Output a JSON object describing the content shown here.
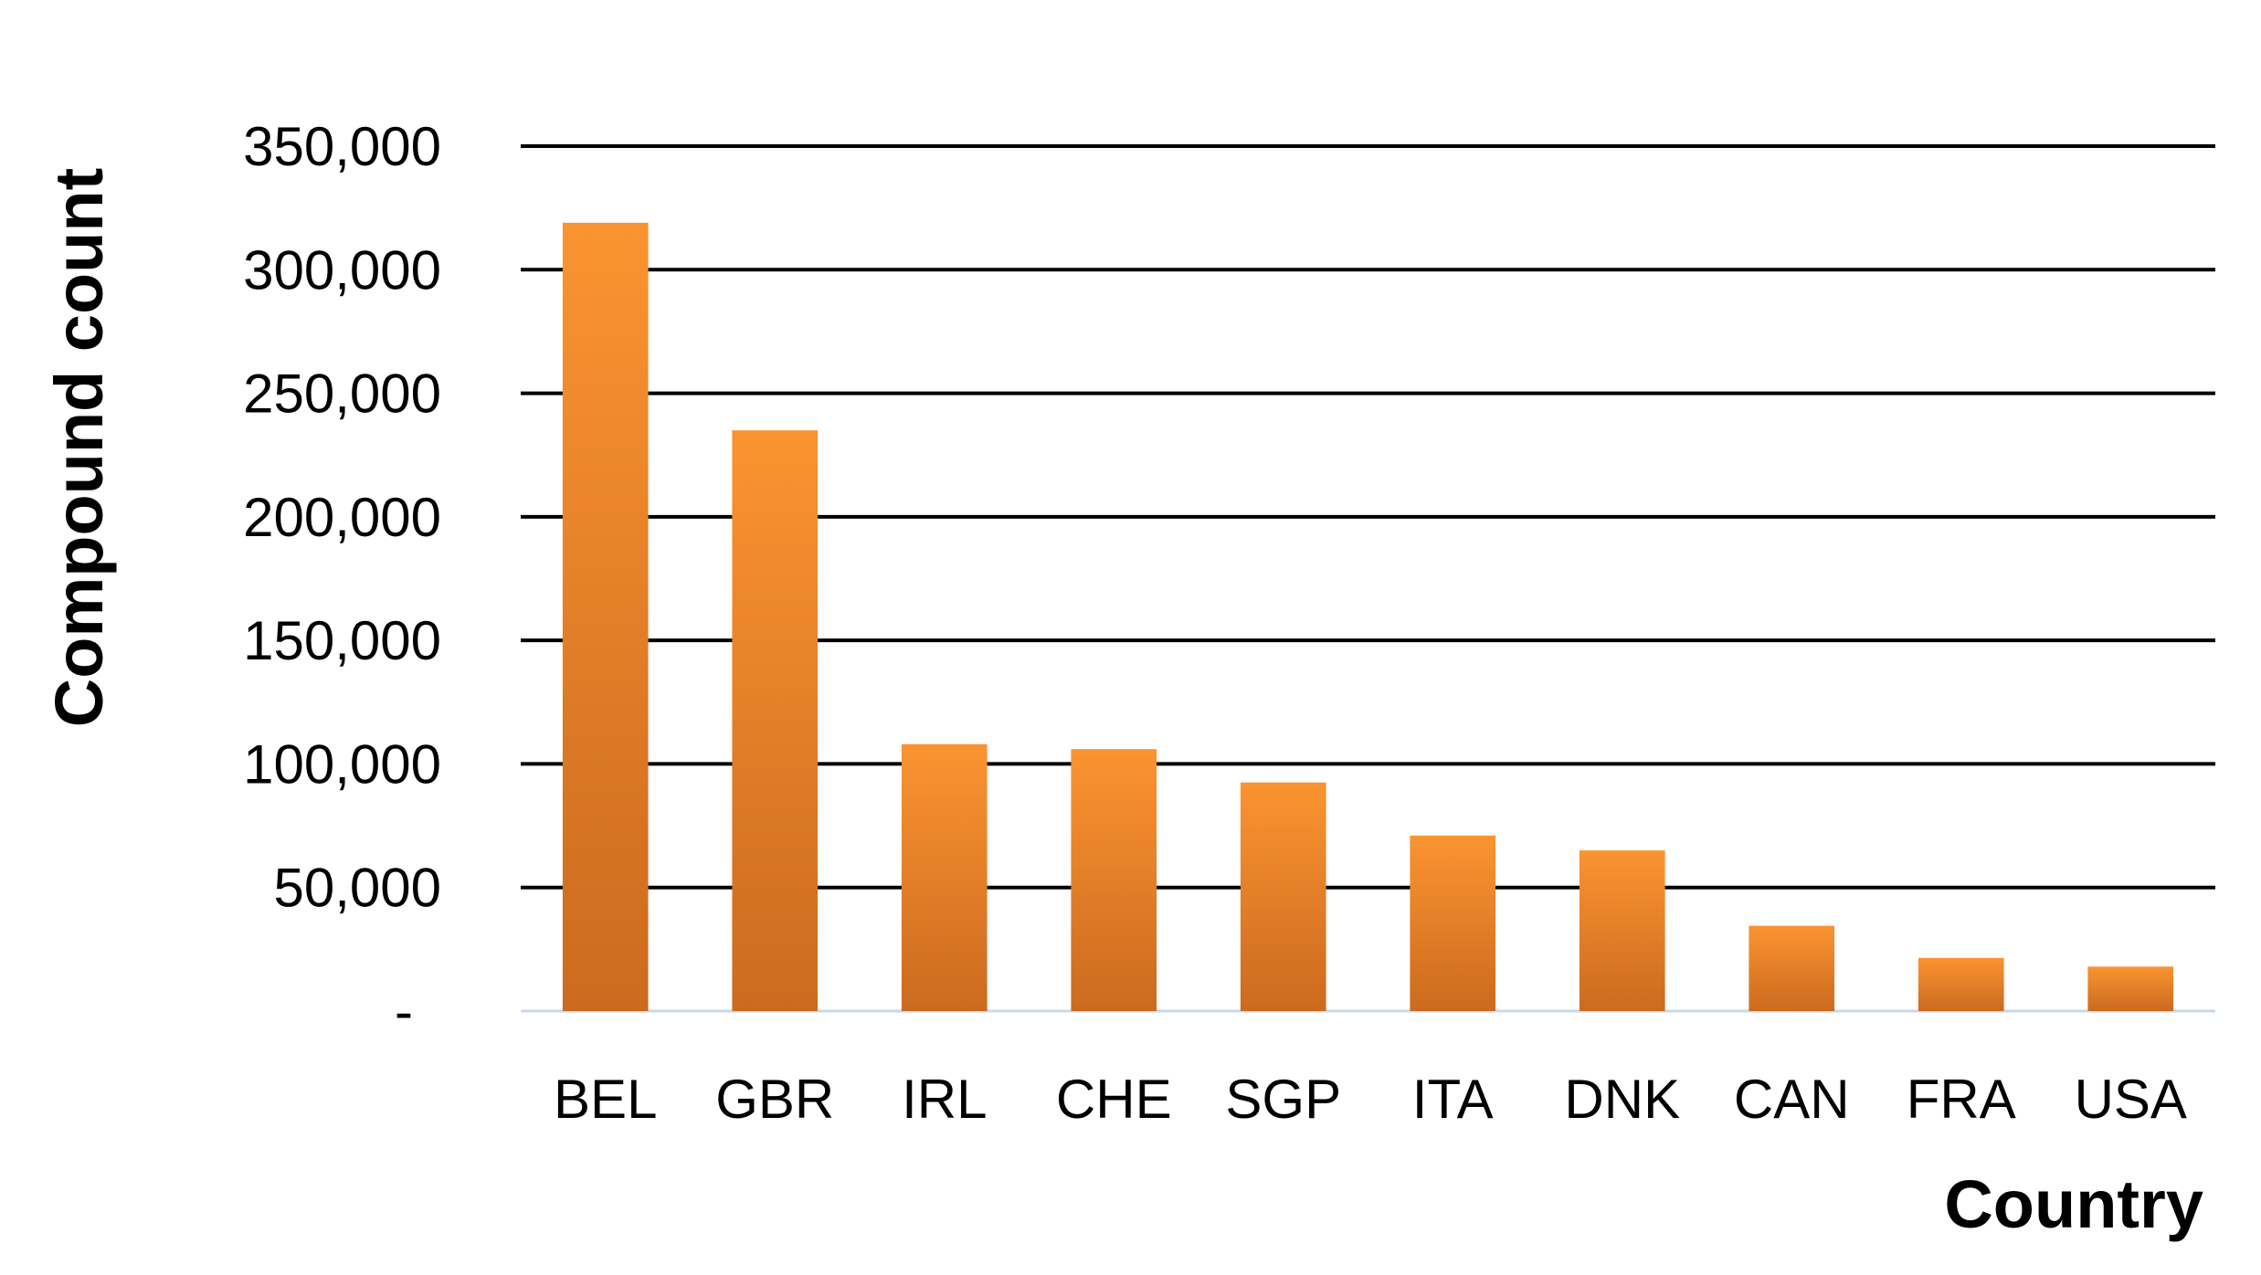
{
  "chart_data": {
    "type": "bar",
    "title": "",
    "xlabel": "Country",
    "ylabel": "Compound count",
    "categories": [
      "BEL",
      "GBR",
      "IRL",
      "CHE",
      "SGP",
      "ITA",
      "DNK",
      "CAN",
      "FRA",
      "USA"
    ],
    "values": [
      319000,
      235000,
      108000,
      106000,
      92500,
      71000,
      65000,
      34500,
      21500,
      18000
    ],
    "ylim": [
      0,
      350000
    ],
    "yticks": [
      0,
      50000,
      100000,
      150000,
      200000,
      250000,
      300000,
      350000
    ],
    "ytick_labels": [
      "-",
      "50,000",
      "100,000",
      "150,000",
      "200,000",
      "250,000",
      "300,000",
      "350,000"
    ],
    "grid": true,
    "legend": "none",
    "colors": {
      "bar_top": "#fa9431",
      "bar_bottom": "#cc6a1f",
      "gridline": "#000000",
      "baseline": "#c9d7ee"
    }
  }
}
